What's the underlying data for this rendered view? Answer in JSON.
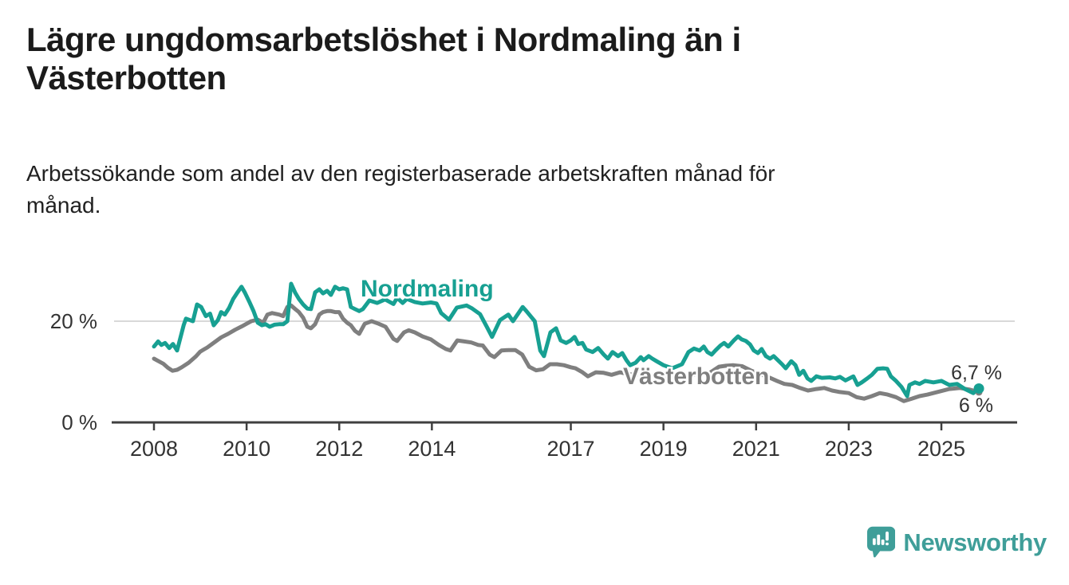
{
  "title": "Lägre ungdomsarbetslöshet i Nordmaling än i Västerbotten",
  "subtitle": "Arbetssökande som andel av den registerbaserade arbetskraften månad för månad.",
  "branding": {
    "name": "Newsworthy"
  },
  "colors": {
    "nordmaling": "#17a092",
    "vasterbotten": "#7f7f7f",
    "gridline": "#d9d9d9",
    "axis": "#3f3f3f",
    "tick_text": "#333333",
    "title_text": "#1b1b1b",
    "logo": "#3f9e99"
  },
  "chart_data": {
    "type": "line",
    "title": "Lägre ungdomsarbetslöshet i Nordmaling än i Västerbotten",
    "xlabel": "",
    "ylabel": "Arbetssökande som andel av den registerbaserade arbetskraften",
    "x_axis": {
      "ticks": [
        2008,
        2010,
        2012,
        2014,
        2017,
        2019,
        2021,
        2023,
        2025
      ],
      "range": [
        2007.1,
        2026.4
      ]
    },
    "y_axis": {
      "ticks": [
        {
          "value": 0,
          "label": "0 %"
        },
        {
          "value": 20,
          "label": "20 %"
        }
      ],
      "gridlines": [
        20
      ],
      "range": [
        0,
        30
      ],
      "unit": "%"
    },
    "legend_position": "inline-labels",
    "grid": "horizontal-only",
    "series": [
      {
        "name": "Västerbotten",
        "color": "#7f7f7f",
        "end_label": "6 %",
        "last_value": 6.0,
        "points": [
          [
            2008.0,
            12.6
          ],
          [
            2008.1,
            12.1
          ],
          [
            2008.2,
            11.6
          ],
          [
            2008.3,
            10.8
          ],
          [
            2008.4,
            10.2
          ],
          [
            2008.5,
            10.4
          ],
          [
            2008.6,
            10.9
          ],
          [
            2008.75,
            11.8
          ],
          [
            2008.9,
            13.0
          ],
          [
            2009.0,
            14.0
          ],
          [
            2009.15,
            14.8
          ],
          [
            2009.3,
            15.8
          ],
          [
            2009.45,
            16.8
          ],
          [
            2009.6,
            17.5
          ],
          [
            2009.75,
            18.3
          ],
          [
            2009.9,
            19.0
          ],
          [
            2010.0,
            19.5
          ],
          [
            2010.1,
            20.0
          ],
          [
            2010.24,
            20.3
          ],
          [
            2010.36,
            19.7
          ],
          [
            2010.45,
            21.3
          ],
          [
            2010.55,
            21.6
          ],
          [
            2010.7,
            21.3
          ],
          [
            2010.79,
            21.0
          ],
          [
            2010.88,
            22.8
          ],
          [
            2010.96,
            23.1
          ],
          [
            2011.05,
            22.4
          ],
          [
            2011.13,
            21.8
          ],
          [
            2011.22,
            20.7
          ],
          [
            2011.31,
            18.9
          ],
          [
            2011.39,
            18.6
          ],
          [
            2011.48,
            19.4
          ],
          [
            2011.57,
            21.3
          ],
          [
            2011.65,
            21.8
          ],
          [
            2011.74,
            22.0
          ],
          [
            2011.82,
            22.0
          ],
          [
            2011.91,
            21.8
          ],
          [
            2012.0,
            21.8
          ],
          [
            2012.08,
            20.5
          ],
          [
            2012.17,
            19.7
          ],
          [
            2012.25,
            19.2
          ],
          [
            2012.34,
            18.1
          ],
          [
            2012.43,
            17.5
          ],
          [
            2012.55,
            19.5
          ],
          [
            2012.7,
            20.0
          ],
          [
            2012.85,
            19.5
          ],
          [
            2013.0,
            18.9
          ],
          [
            2013.17,
            16.5
          ],
          [
            2013.25,
            16.1
          ],
          [
            2013.4,
            17.8
          ],
          [
            2013.5,
            18.2
          ],
          [
            2013.63,
            17.8
          ],
          [
            2013.8,
            17.0
          ],
          [
            2013.98,
            16.4
          ],
          [
            2014.15,
            15.3
          ],
          [
            2014.3,
            14.5
          ],
          [
            2014.4,
            14.2
          ],
          [
            2014.55,
            16.2
          ],
          [
            2014.7,
            16.0
          ],
          [
            2014.85,
            15.8
          ],
          [
            2015.0,
            15.3
          ],
          [
            2015.1,
            15.2
          ],
          [
            2015.25,
            13.4
          ],
          [
            2015.35,
            12.9
          ],
          [
            2015.5,
            14.2
          ],
          [
            2015.65,
            14.3
          ],
          [
            2015.8,
            14.3
          ],
          [
            2015.95,
            13.4
          ],
          [
            2016.1,
            11.0
          ],
          [
            2016.25,
            10.3
          ],
          [
            2016.4,
            10.5
          ],
          [
            2016.55,
            11.5
          ],
          [
            2016.7,
            11.5
          ],
          [
            2016.85,
            11.3
          ],
          [
            2017.0,
            10.9
          ],
          [
            2017.1,
            10.7
          ],
          [
            2017.25,
            9.9
          ],
          [
            2017.37,
            9.1
          ],
          [
            2017.54,
            9.9
          ],
          [
            2017.71,
            9.8
          ],
          [
            2017.88,
            9.4
          ],
          [
            2018.06,
            9.9
          ],
          [
            2018.2,
            9.6
          ],
          [
            2018.4,
            9.4
          ],
          [
            2018.6,
            9.6
          ],
          [
            2018.8,
            9.2
          ],
          [
            2019.0,
            9.1
          ],
          [
            2019.2,
            8.9
          ],
          [
            2019.4,
            9.0
          ],
          [
            2019.6,
            9.4
          ],
          [
            2019.8,
            9.6
          ],
          [
            2020.0,
            9.8
          ],
          [
            2020.2,
            11.0
          ],
          [
            2020.35,
            11.2
          ],
          [
            2020.5,
            11.3
          ],
          [
            2020.7,
            11.1
          ],
          [
            2020.9,
            10.2
          ],
          [
            2021.1,
            9.5
          ],
          [
            2021.3,
            8.8
          ],
          [
            2021.45,
            8.2
          ],
          [
            2021.61,
            7.6
          ],
          [
            2021.78,
            7.4
          ],
          [
            2021.95,
            6.8
          ],
          [
            2022.12,
            6.3
          ],
          [
            2022.3,
            6.6
          ],
          [
            2022.47,
            6.8
          ],
          [
            2022.64,
            6.3
          ],
          [
            2022.81,
            6.0
          ],
          [
            2023.0,
            5.8
          ],
          [
            2023.17,
            5.0
          ],
          [
            2023.33,
            4.7
          ],
          [
            2023.5,
            5.2
          ],
          [
            2023.67,
            5.8
          ],
          [
            2023.84,
            5.5
          ],
          [
            2024.02,
            5.0
          ],
          [
            2024.19,
            4.2
          ],
          [
            2024.36,
            4.7
          ],
          [
            2024.53,
            5.2
          ],
          [
            2024.7,
            5.5
          ],
          [
            2024.91,
            6.0
          ],
          [
            2025.17,
            6.6
          ],
          [
            2025.4,
            6.8
          ],
          [
            2025.6,
            6.5
          ],
          [
            2025.81,
            6.0
          ]
        ]
      },
      {
        "name": "Nordmaling",
        "color": "#17a092",
        "end_label": "6,7 %",
        "last_value": 6.7,
        "points": [
          [
            2008.0,
            15.0
          ],
          [
            2008.09,
            16.0
          ],
          [
            2008.16,
            15.3
          ],
          [
            2008.24,
            15.7
          ],
          [
            2008.33,
            14.7
          ],
          [
            2008.41,
            15.5
          ],
          [
            2008.5,
            14.2
          ],
          [
            2008.64,
            19.2
          ],
          [
            2008.69,
            20.5
          ],
          [
            2008.84,
            20.0
          ],
          [
            2008.93,
            23.3
          ],
          [
            2009.02,
            22.8
          ],
          [
            2009.12,
            21.0
          ],
          [
            2009.21,
            21.5
          ],
          [
            2009.29,
            19.2
          ],
          [
            2009.38,
            20.2
          ],
          [
            2009.45,
            21.8
          ],
          [
            2009.53,
            21.3
          ],
          [
            2009.62,
            22.6
          ],
          [
            2009.71,
            24.4
          ],
          [
            2009.79,
            25.5
          ],
          [
            2009.89,
            26.8
          ],
          [
            2009.96,
            25.7
          ],
          [
            2010.07,
            23.6
          ],
          [
            2010.15,
            22.0
          ],
          [
            2010.24,
            19.7
          ],
          [
            2010.33,
            19.2
          ],
          [
            2010.41,
            19.4
          ],
          [
            2010.5,
            18.9
          ],
          [
            2010.6,
            19.3
          ],
          [
            2010.7,
            19.4
          ],
          [
            2010.79,
            19.4
          ],
          [
            2010.88,
            20.0
          ],
          [
            2010.96,
            27.4
          ],
          [
            2011.05,
            25.6
          ],
          [
            2011.13,
            24.4
          ],
          [
            2011.22,
            23.3
          ],
          [
            2011.31,
            22.5
          ],
          [
            2011.39,
            22.4
          ],
          [
            2011.48,
            25.7
          ],
          [
            2011.57,
            26.3
          ],
          [
            2011.65,
            25.5
          ],
          [
            2011.74,
            26.0
          ],
          [
            2011.82,
            25.2
          ],
          [
            2011.91,
            26.8
          ],
          [
            2012.0,
            26.3
          ],
          [
            2012.08,
            26.5
          ],
          [
            2012.17,
            26.3
          ],
          [
            2012.25,
            22.8
          ],
          [
            2012.34,
            22.4
          ],
          [
            2012.43,
            22.0
          ],
          [
            2012.51,
            22.4
          ],
          [
            2012.65,
            24.1
          ],
          [
            2012.82,
            23.6
          ],
          [
            2012.99,
            24.3
          ],
          [
            2013.17,
            23.4
          ],
          [
            2013.25,
            24.6
          ],
          [
            2013.37,
            23.6
          ],
          [
            2013.46,
            24.4
          ],
          [
            2013.63,
            23.8
          ],
          [
            2013.8,
            23.5
          ],
          [
            2013.98,
            23.7
          ],
          [
            2014.1,
            23.5
          ],
          [
            2014.2,
            21.6
          ],
          [
            2014.37,
            20.3
          ],
          [
            2014.54,
            22.7
          ],
          [
            2014.75,
            23.1
          ],
          [
            2014.87,
            22.5
          ],
          [
            2015.04,
            21.4
          ],
          [
            2015.18,
            19.0
          ],
          [
            2015.3,
            16.9
          ],
          [
            2015.47,
            20.2
          ],
          [
            2015.65,
            21.3
          ],
          [
            2015.75,
            20.0
          ],
          [
            2015.96,
            22.8
          ],
          [
            2016.04,
            22.0
          ],
          [
            2016.22,
            20.0
          ],
          [
            2016.34,
            14.2
          ],
          [
            2016.42,
            13.1
          ],
          [
            2016.56,
            17.8
          ],
          [
            2016.68,
            18.6
          ],
          [
            2016.78,
            16.2
          ],
          [
            2016.9,
            15.7
          ],
          [
            2017.0,
            16.2
          ],
          [
            2017.08,
            16.9
          ],
          [
            2017.16,
            15.5
          ],
          [
            2017.25,
            15.7
          ],
          [
            2017.33,
            14.4
          ],
          [
            2017.47,
            13.9
          ],
          [
            2017.59,
            14.7
          ],
          [
            2017.71,
            13.4
          ],
          [
            2017.8,
            12.6
          ],
          [
            2017.9,
            13.9
          ],
          [
            2018.02,
            13.1
          ],
          [
            2018.11,
            13.7
          ],
          [
            2018.2,
            12.3
          ],
          [
            2018.28,
            11.3
          ],
          [
            2018.4,
            11.8
          ],
          [
            2018.51,
            12.9
          ],
          [
            2018.57,
            12.3
          ],
          [
            2018.68,
            13.1
          ],
          [
            2018.76,
            12.6
          ],
          [
            2018.85,
            12.1
          ],
          [
            2019.0,
            11.3
          ],
          [
            2019.19,
            10.7
          ],
          [
            2019.4,
            11.5
          ],
          [
            2019.54,
            13.9
          ],
          [
            2019.66,
            14.6
          ],
          [
            2019.78,
            14.2
          ],
          [
            2019.87,
            15.0
          ],
          [
            2019.95,
            13.9
          ],
          [
            2020.04,
            13.4
          ],
          [
            2020.12,
            14.2
          ],
          [
            2020.23,
            15.2
          ],
          [
            2020.31,
            15.7
          ],
          [
            2020.4,
            15.0
          ],
          [
            2020.52,
            16.2
          ],
          [
            2020.61,
            17.0
          ],
          [
            2020.69,
            16.4
          ],
          [
            2020.78,
            16.1
          ],
          [
            2020.87,
            15.4
          ],
          [
            2020.95,
            14.2
          ],
          [
            2021.04,
            13.7
          ],
          [
            2021.12,
            14.5
          ],
          [
            2021.21,
            13.1
          ],
          [
            2021.3,
            12.6
          ],
          [
            2021.38,
            13.1
          ],
          [
            2021.47,
            12.3
          ],
          [
            2021.56,
            11.5
          ],
          [
            2021.64,
            10.7
          ],
          [
            2021.76,
            12.1
          ],
          [
            2021.85,
            11.3
          ],
          [
            2021.93,
            9.4
          ],
          [
            2022.02,
            10.2
          ],
          [
            2022.11,
            8.7
          ],
          [
            2022.19,
            8.2
          ],
          [
            2022.3,
            9.1
          ],
          [
            2022.42,
            8.8
          ],
          [
            2022.59,
            8.9
          ],
          [
            2022.71,
            8.7
          ],
          [
            2022.81,
            9.0
          ],
          [
            2022.93,
            8.3
          ],
          [
            2023.1,
            9.1
          ],
          [
            2023.19,
            7.4
          ],
          [
            2023.28,
            7.9
          ],
          [
            2023.4,
            8.7
          ],
          [
            2023.5,
            9.4
          ],
          [
            2023.62,
            10.6
          ],
          [
            2023.74,
            10.7
          ],
          [
            2023.83,
            10.6
          ],
          [
            2023.91,
            9.1
          ],
          [
            2024.02,
            8.2
          ],
          [
            2024.14,
            7.0
          ],
          [
            2024.26,
            5.2
          ],
          [
            2024.31,
            7.4
          ],
          [
            2024.43,
            7.9
          ],
          [
            2024.53,
            7.6
          ],
          [
            2024.65,
            8.2
          ],
          [
            2024.83,
            7.9
          ],
          [
            2025.0,
            8.2
          ],
          [
            2025.17,
            7.4
          ],
          [
            2025.34,
            7.6
          ],
          [
            2025.51,
            6.6
          ],
          [
            2025.69,
            5.8
          ],
          [
            2025.81,
            6.7
          ]
        ]
      }
    ]
  }
}
